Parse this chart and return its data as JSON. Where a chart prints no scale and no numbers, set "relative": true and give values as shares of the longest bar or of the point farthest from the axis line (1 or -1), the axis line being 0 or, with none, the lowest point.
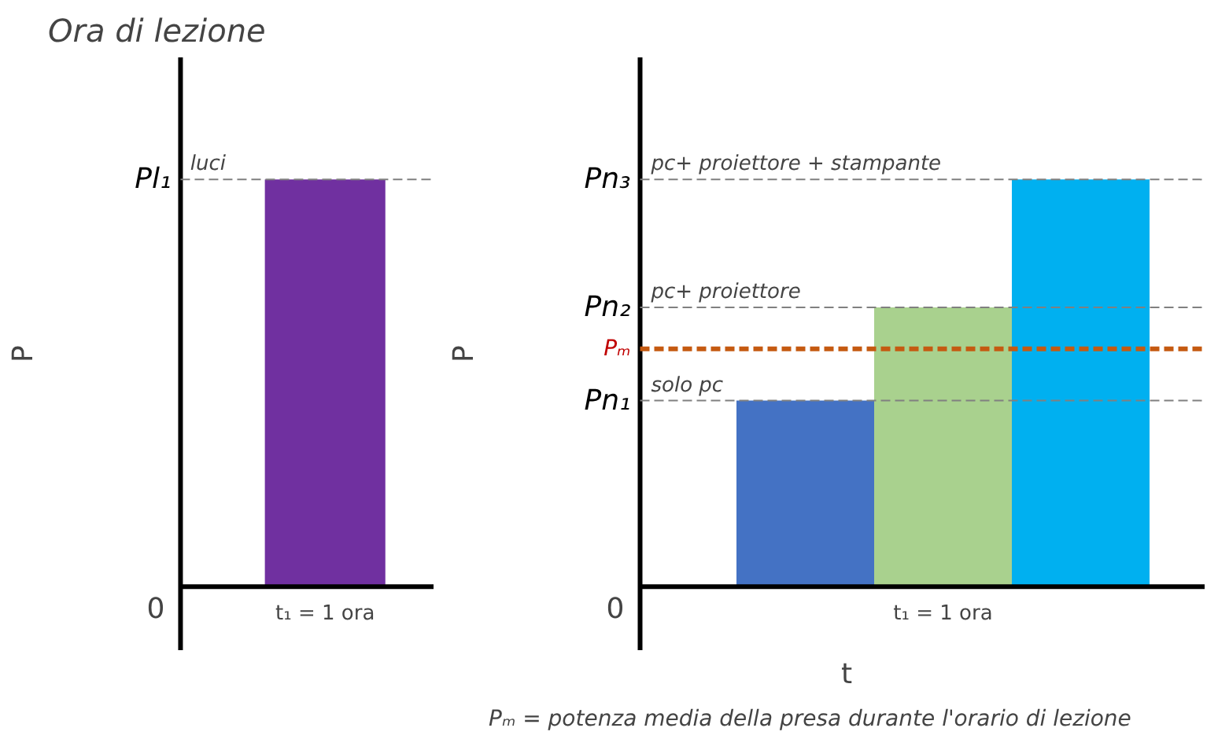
{
  "chart_data": [
    {
      "type": "bar",
      "relative": true,
      "title": "Ora di lezione",
      "ylabel": "P",
      "categories": [
        "t₁ = 1 ora"
      ],
      "values": [
        1
      ],
      "colors": [
        "#7030a0"
      ],
      "ref_lines": [
        {
          "axis": "y",
          "value": 1,
          "label": "Pl₁",
          "color": "#808080",
          "line_style": "dashed"
        }
      ],
      "annotations": [
        "0",
        {
          "text": "luci",
          "y": 1
        }
      ]
    },
    {
      "type": "bar",
      "relative": true,
      "ylabel": "P",
      "xlabel": "t",
      "categories": [
        null,
        "t₁ = 1 ora",
        null
      ],
      "values": [
        0.457,
        0.686,
        1
      ],
      "colors": [
        "#4472c4",
        "#a9d18e",
        "#00b0f0"
      ],
      "ref_lines": [
        {
          "axis": "y",
          "value": 0.457,
          "label": "Pn₁",
          "color": "#808080",
          "line_style": "dashed"
        },
        {
          "axis": "y",
          "value": 0.686,
          "label": "Pn₂",
          "color": "#808080",
          "line_style": "dashed"
        },
        {
          "axis": "y",
          "value": 1,
          "label": "Pn₃",
          "color": "#808080",
          "line_style": "dashed"
        },
        {
          "axis": "y",
          "value": 0.584,
          "label": "Pₘ",
          "color": "#c55a11",
          "line_style": "dashed"
        }
      ],
      "annotations": [
        "0",
        {
          "text": "solo pc",
          "y": 0.457
        },
        {
          "text": "pc+ proiettore",
          "y": 0.686
        },
        {
          "text": "pc+ proiettore + stampante",
          "y": 1
        },
        "Pₘ = potenza media della presa durante l'orario di lezione"
      ]
    }
  ]
}
